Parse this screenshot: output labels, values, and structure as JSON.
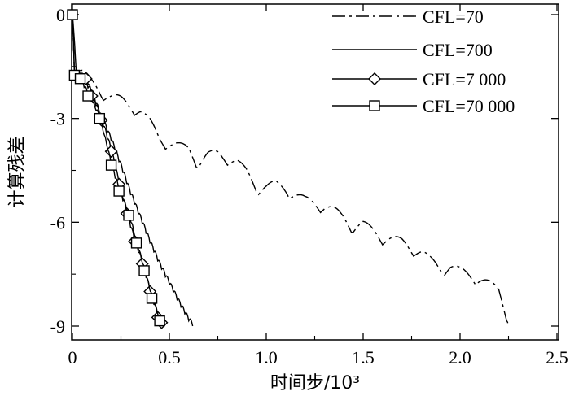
{
  "chart_data": {
    "type": "line",
    "title": "",
    "xlabel": "时间步/10³",
    "ylabel": "计算残差",
    "xlim": [
      0,
      2.5
    ],
    "ylim": [
      -9.6,
      0.3
    ],
    "xticks": [
      0,
      0.5,
      1.0,
      1.5,
      2.0,
      2.5
    ],
    "xtick_labels": [
      "0",
      "0.5",
      "1.0",
      "1.5",
      "2.0",
      "2.5"
    ],
    "yticks": [
      0,
      -3,
      -6,
      -9
    ],
    "ytick_labels": [
      "0",
      "-3",
      "-6",
      "-9"
    ],
    "grid": false,
    "legend_position": "top-right",
    "series": [
      {
        "name": "CFL=70",
        "line_style": "dash-dot",
        "marker": "none",
        "points": [
          [
            0,
            0
          ],
          [
            0.01,
            -1.75
          ],
          [
            0.05,
            -1.9
          ],
          [
            0.1,
            -2.2
          ],
          [
            0.15,
            -2.45
          ],
          [
            0.2,
            -2.6
          ],
          [
            0.25,
            -2.7
          ],
          [
            0.3,
            -2.85
          ],
          [
            0.35,
            -3.0
          ],
          [
            0.4,
            -3.35
          ],
          [
            0.45,
            -3.8
          ],
          [
            0.5,
            -3.95
          ],
          [
            0.55,
            -4.05
          ],
          [
            0.6,
            -4.1
          ],
          [
            0.65,
            -4.5
          ],
          [
            0.7,
            -4.3
          ],
          [
            0.75,
            -4.25
          ],
          [
            0.8,
            -4.35
          ],
          [
            0.85,
            -4.5
          ],
          [
            0.9,
            -4.8
          ],
          [
            0.95,
            -5.2
          ],
          [
            1.0,
            -5.2
          ],
          [
            1.05,
            -5.15
          ],
          [
            1.1,
            -5.25
          ],
          [
            1.2,
            -5.6
          ],
          [
            1.3,
            -5.75
          ],
          [
            1.35,
            -5.9
          ],
          [
            1.4,
            -6.1
          ],
          [
            1.45,
            -6.35
          ],
          [
            1.5,
            -6.3
          ],
          [
            1.6,
            -6.65
          ],
          [
            1.7,
            -6.8
          ],
          [
            1.8,
            -7.1
          ],
          [
            1.85,
            -7.35
          ],
          [
            1.9,
            -7.55
          ],
          [
            1.95,
            -7.5
          ],
          [
            2.0,
            -7.65
          ],
          [
            2.1,
            -7.85
          ],
          [
            2.2,
            -8.2
          ],
          [
            2.25,
            -9.0
          ]
        ]
      },
      {
        "name": "CFL=700",
        "line_style": "solid",
        "marker": "none",
        "points": [
          [
            0,
            0
          ],
          [
            0.01,
            -1.75
          ],
          [
            0.05,
            -1.85
          ],
          [
            0.1,
            -2.3
          ],
          [
            0.15,
            -3.0
          ],
          [
            0.2,
            -3.65
          ],
          [
            0.25,
            -4.4
          ],
          [
            0.3,
            -5.2
          ],
          [
            0.35,
            -5.9
          ],
          [
            0.4,
            -6.6
          ],
          [
            0.45,
            -7.25
          ],
          [
            0.5,
            -7.8
          ],
          [
            0.55,
            -8.35
          ],
          [
            0.6,
            -8.85
          ],
          [
            0.62,
            -9.0
          ]
        ]
      },
      {
        "name": "CFL=7 000",
        "line_style": "solid",
        "marker": "diamond",
        "points": [
          [
            0,
            0
          ],
          [
            0.02,
            -1.75
          ],
          [
            0.07,
            -1.85
          ],
          [
            0.1,
            -2.35
          ],
          [
            0.15,
            -3.05
          ],
          [
            0.2,
            -3.95
          ],
          [
            0.24,
            -4.9
          ],
          [
            0.28,
            -5.75
          ],
          [
            0.32,
            -6.55
          ],
          [
            0.36,
            -7.2
          ],
          [
            0.4,
            -8.0
          ],
          [
            0.44,
            -8.75
          ],
          [
            0.46,
            -8.9
          ]
        ]
      },
      {
        "name": "CFL=70 000",
        "line_style": "solid",
        "marker": "square",
        "points": [
          [
            0,
            0
          ],
          [
            0.01,
            -1.75
          ],
          [
            0.04,
            -1.85
          ],
          [
            0.08,
            -2.35
          ],
          [
            0.14,
            -3.0
          ],
          [
            0.2,
            -4.35
          ],
          [
            0.24,
            -5.1
          ],
          [
            0.29,
            -5.8
          ],
          [
            0.33,
            -6.6
          ],
          [
            0.37,
            -7.4
          ],
          [
            0.41,
            -8.2
          ],
          [
            0.45,
            -8.85
          ]
        ]
      }
    ]
  }
}
